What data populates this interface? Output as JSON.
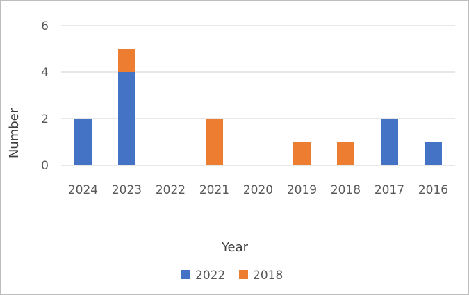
{
  "chart_data": {
    "type": "bar",
    "stacked": true,
    "categories": [
      "2024",
      "2023",
      "2022",
      "2021",
      "2020",
      "2019",
      "2018",
      "2017",
      "2016"
    ],
    "series": [
      {
        "name": "2022",
        "color": "#4472C4",
        "values": [
          2,
          4,
          0,
          0,
          0,
          0,
          0,
          2,
          1
        ]
      },
      {
        "name": "2018",
        "color": "#ED7D31",
        "values": [
          0,
          1,
          0,
          2,
          0,
          1,
          1,
          0,
          0
        ]
      }
    ],
    "xlabel": "Year",
    "ylabel": "Number",
    "ylim": [
      0,
      6
    ],
    "yticks": [
      "0",
      "2",
      "4",
      "6"
    ],
    "grid": true,
    "legend_position": "bottom"
  }
}
